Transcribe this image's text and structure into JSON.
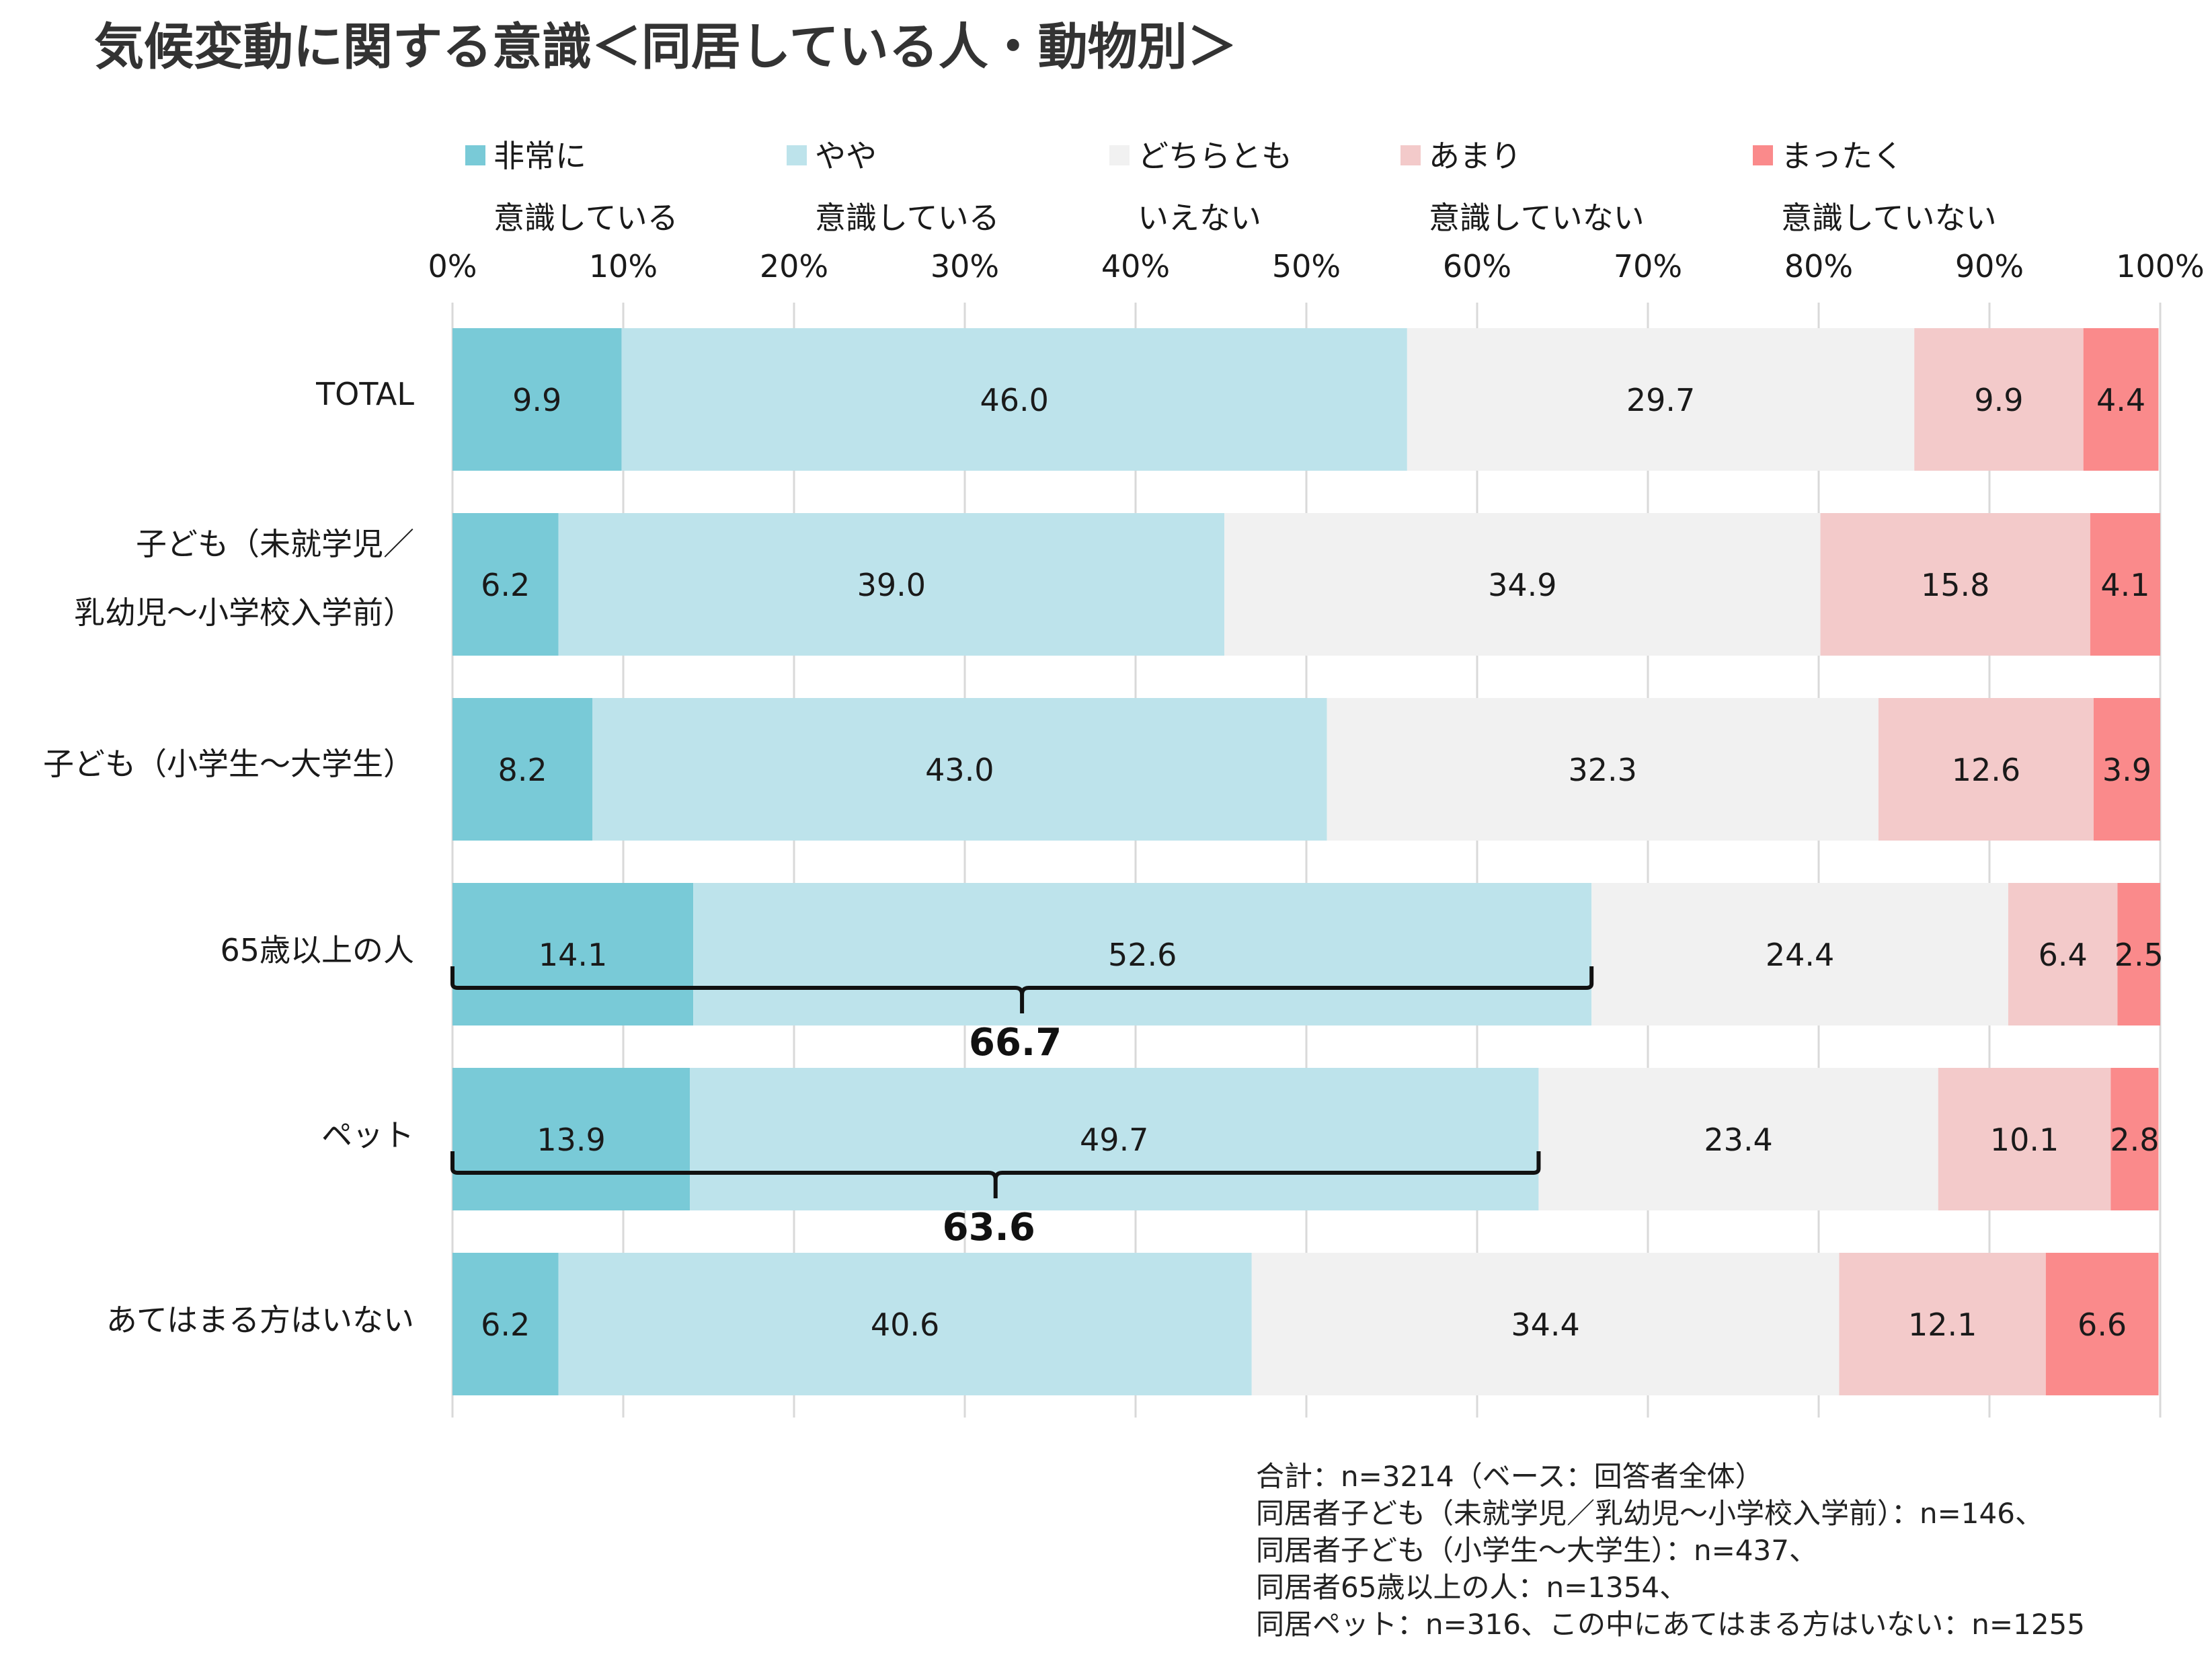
{
  "title": "気候変動に関する意識＜同居している人・動物別＞",
  "chart_data": {
    "type": "bar",
    "orientation": "horizontal",
    "stacked": true,
    "percent_axis": {
      "ticks": [
        "0%",
        "10%",
        "20%",
        "30%",
        "40%",
        "50%",
        "60%",
        "70%",
        "80%",
        "90%",
        "100%"
      ],
      "range": [
        0,
        100
      ],
      "grid": true,
      "position": "top"
    },
    "categories": [
      [
        "TOTAL"
      ],
      [
        "子ども（未就学児／",
        "乳幼児〜小学校入学前）"
      ],
      [
        "子ども（小学生〜大学生）"
      ],
      [
        "65歳以上の人"
      ],
      [
        "ペット"
      ],
      [
        "あてはまる方はいない"
      ]
    ],
    "series": [
      {
        "name": [
          "非常に",
          "意識している"
        ],
        "color": "#79CAD7",
        "values": [
          9.9,
          6.2,
          8.2,
          14.1,
          13.9,
          6.2
        ]
      },
      {
        "name": [
          "やや",
          "意識している"
        ],
        "color": "#BDE3EB",
        "values": [
          46.0,
          39.0,
          43.0,
          52.6,
          49.7,
          40.6
        ]
      },
      {
        "name": [
          "どちらとも",
          "いえない"
        ],
        "color": "#F1F1F1",
        "values": [
          29.7,
          34.9,
          32.3,
          24.4,
          23.4,
          34.4
        ]
      },
      {
        "name": [
          "あまり",
          "意識していない"
        ],
        "color": "#F3CACA",
        "values": [
          9.9,
          15.8,
          12.6,
          6.4,
          10.1,
          12.1
        ]
      },
      {
        "name": [
          "まったく",
          "意識していない"
        ],
        "color": "#FA8A8B",
        "values": [
          4.4,
          4.1,
          3.9,
          2.5,
          2.8,
          6.6
        ]
      }
    ],
    "legend_position": "top",
    "annotations": [
      {
        "category_index": 3,
        "from": 0,
        "to": 66.7,
        "label": "66.7"
      },
      {
        "category_index": 4,
        "from": 0,
        "to": 63.6,
        "label": "63.6"
      }
    ]
  },
  "footnote": [
    "合計：n=3214（ベース：回答者全体）",
    "同居者子ども（未就学児／乳幼児〜小学校入学前）：n=146、",
    "同居者子ども（小学生〜大学生）：n=437、",
    "同居者65歳以上の人：n=1354、",
    "同居ペット：n=316、この中にあてはまる方はいない：n=1255"
  ]
}
